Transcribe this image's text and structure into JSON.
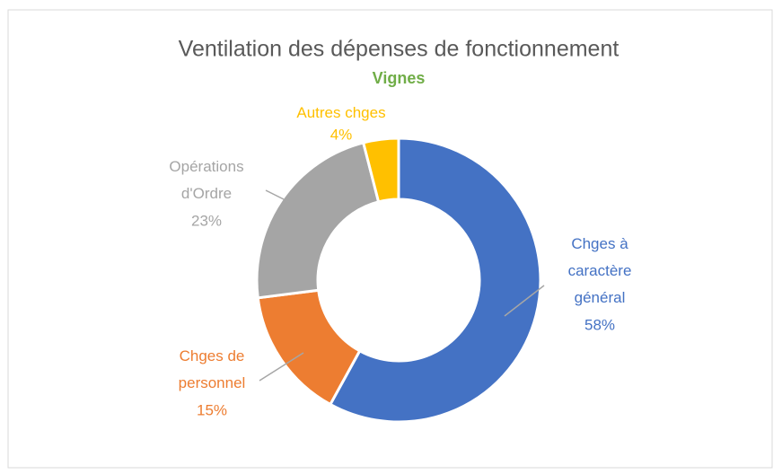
{
  "chart_data": {
    "type": "donut",
    "title": "Ventilation des dépenses de fonctionnement",
    "subtitle": "Vignes",
    "categories": [
      "Chges à caractère général",
      "Chges de personnel",
      "Opérations d'Ordre",
      "Autres chges"
    ],
    "values": [
      58,
      15,
      23,
      4
    ],
    "value_labels": [
      "58%",
      "15%",
      "23%",
      "4%"
    ],
    "colors": [
      "#4472c4",
      "#ed7d31",
      "#a5a5a5",
      "#ffc000"
    ],
    "subtitle_color": "#70ad47"
  }
}
